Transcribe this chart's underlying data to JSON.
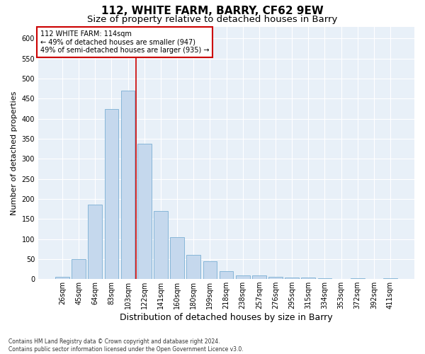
{
  "title": "112, WHITE FARM, BARRY, CF62 9EW",
  "subtitle": "Size of property relative to detached houses in Barry",
  "xlabel": "Distribution of detached houses by size in Barry",
  "ylabel": "Number of detached properties",
  "footnote": "Contains HM Land Registry data © Crown copyright and database right 2024.\nContains public sector information licensed under the Open Government Licence v3.0.",
  "categories": [
    "26sqm",
    "45sqm",
    "64sqm",
    "83sqm",
    "103sqm",
    "122sqm",
    "141sqm",
    "160sqm",
    "180sqm",
    "199sqm",
    "218sqm",
    "238sqm",
    "257sqm",
    "276sqm",
    "295sqm",
    "315sqm",
    "334sqm",
    "353sqm",
    "372sqm",
    "392sqm",
    "411sqm"
  ],
  "values": [
    5,
    50,
    185,
    425,
    470,
    338,
    170,
    105,
    60,
    45,
    20,
    10,
    10,
    5,
    4,
    3,
    2,
    1,
    2,
    1,
    2
  ],
  "bar_color": "#c5d8ed",
  "bar_edge_color": "#7bafd4",
  "highlight_color": "#cc0000",
  "highlight_index": 4,
  "annotation_title": "112 WHITE FARM: 114sqm",
  "annotation_line1": "← 49% of detached houses are smaller (947)",
  "annotation_line2": "49% of semi-detached houses are larger (935) →",
  "annotation_box_color": "#cc0000",
  "ylim": [
    0,
    630
  ],
  "yticks": [
    0,
    50,
    100,
    150,
    200,
    250,
    300,
    350,
    400,
    450,
    500,
    550,
    600
  ],
  "background_color": "#e8f0f8",
  "grid_color": "#ffffff",
  "title_fontsize": 11,
  "subtitle_fontsize": 9.5,
  "xlabel_fontsize": 9,
  "ylabel_fontsize": 8,
  "tick_fontsize": 7,
  "footnote_fontsize": 5.5
}
